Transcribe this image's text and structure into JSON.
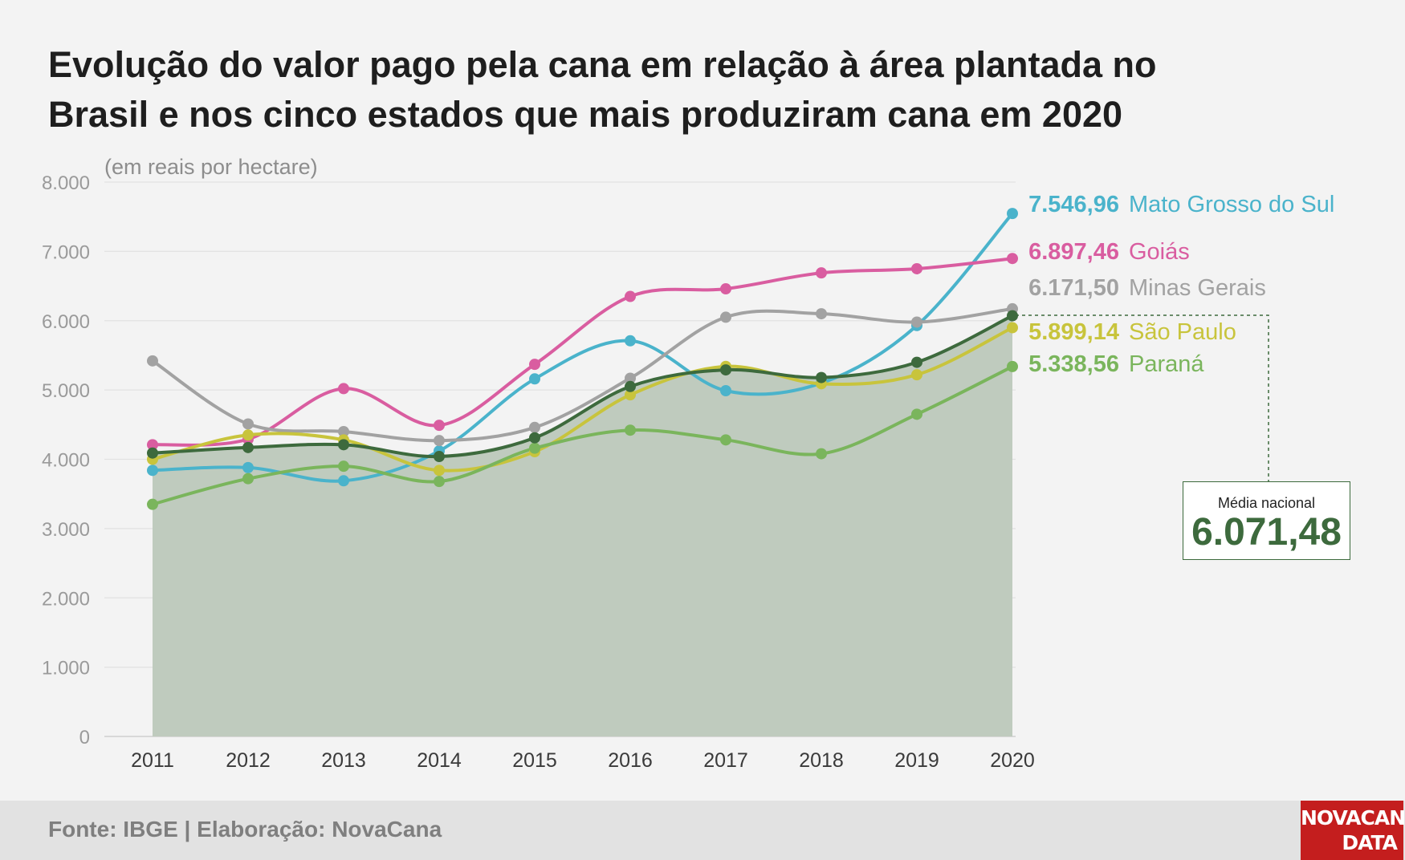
{
  "title_lines": [
    "Evolução do valor pago pela cana em relação à área plantada no",
    "Brasil e nos cinco estados que mais produziram cana em 2020"
  ],
  "source": "Fonte: IBGE | Elaboração: NovaCana",
  "logo": [
    "NOVACANA",
    "DATA"
  ],
  "colors": {
    "background": "#f3f3f3",
    "area_fill": "#bfcbbe",
    "grid": "#e2e2e2",
    "axis_text": "#9a9a9a"
  },
  "chart_data": {
    "type": "line",
    "ylabel": "(em reais por hectare)",
    "ylim": [
      0,
      8000
    ],
    "yticks": [
      0,
      1000,
      2000,
      3000,
      4000,
      5000,
      6000,
      7000,
      8000
    ],
    "ytick_labels": [
      "0",
      "1.000",
      "2.000",
      "3.000",
      "4.000",
      "5.000",
      "6.000",
      "7.000",
      "8.000"
    ],
    "categories": [
      "2011",
      "2012",
      "2013",
      "2014",
      "2015",
      "2016",
      "2017",
      "2018",
      "2019",
      "2020"
    ],
    "grid": true,
    "area_series": "Média nacional",
    "series": [
      {
        "name": "Mato Grosso do Sul",
        "color": "#4ab3cb",
        "last_label": "7.546,96",
        "values": [
          3840,
          3880,
          3690,
          4120,
          5160,
          5710,
          4990,
          5100,
          5930,
          7546.96
        ]
      },
      {
        "name": "Goiás",
        "color": "#d95da0",
        "last_label": "6.897,46",
        "values": [
          4210,
          4290,
          5020,
          4490,
          5370,
          6350,
          6460,
          6690,
          6750,
          6897.46
        ]
      },
      {
        "name": "Minas Gerais",
        "color": "#a2a2a2",
        "last_label": "6.171,50",
        "values": [
          5420,
          4510,
          4400,
          4270,
          4460,
          5170,
          6050,
          6100,
          5980,
          6171.5
        ]
      },
      {
        "name": "São Paulo",
        "color": "#c8c43c",
        "last_label": "5.899,14",
        "values": [
          4000,
          4350,
          4280,
          3840,
          4110,
          4930,
          5340,
          5090,
          5220,
          5899.14
        ]
      },
      {
        "name": "Paraná",
        "color": "#7ab55c",
        "last_label": "5.338,56",
        "values": [
          3350,
          3720,
          3900,
          3680,
          4160,
          4420,
          4280,
          4080,
          4650,
          5338.56
        ]
      },
      {
        "name": "Média nacional",
        "color": "#3d6a3d",
        "last_label": "6.071,48",
        "values": [
          4090,
          4170,
          4210,
          4040,
          4310,
          5050,
          5290,
          5180,
          5400,
          6071.48
        ]
      }
    ]
  },
  "media_box": {
    "label": "Média nacional",
    "value": "6.071,48",
    "color": "#3d6a3d"
  }
}
